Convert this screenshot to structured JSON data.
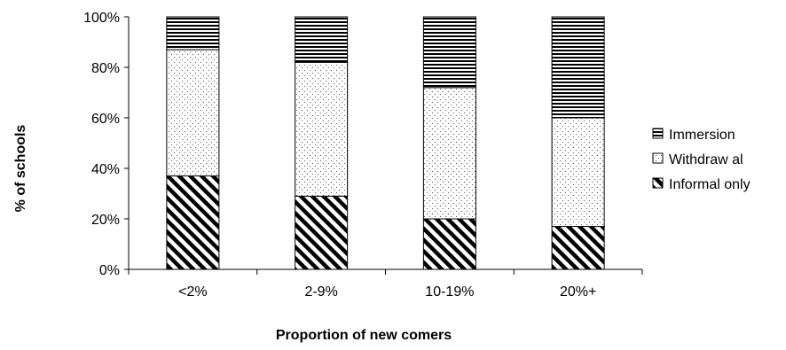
{
  "chart_data": {
    "type": "bar",
    "stacked": true,
    "percent_stacked": true,
    "categories": [
      "<2%",
      "2-9%",
      "10-19%",
      "20%+"
    ],
    "series": [
      {
        "name": "Informal only",
        "values": [
          37,
          29,
          20,
          17
        ],
        "pattern": "diagonal-stripes"
      },
      {
        "name": "Withdraw al",
        "values": [
          50,
          53,
          52,
          43
        ],
        "pattern": "dots"
      },
      {
        "name": "Immersion",
        "values": [
          13,
          18,
          28,
          40
        ],
        "pattern": "horizontal-stripes"
      }
    ],
    "xlabel": "Proportion of new comers",
    "ylabel": "% of schools",
    "ylim": [
      0,
      100
    ],
    "yticks": [
      "0%",
      "20%",
      "40%",
      "60%",
      "80%",
      "100%"
    ],
    "legend_position": "right",
    "legend_order": [
      "Immersion",
      "Withdraw al",
      "Informal only"
    ],
    "grid": false,
    "colors": {
      "ink": "#000000",
      "background": "#ffffff"
    }
  }
}
